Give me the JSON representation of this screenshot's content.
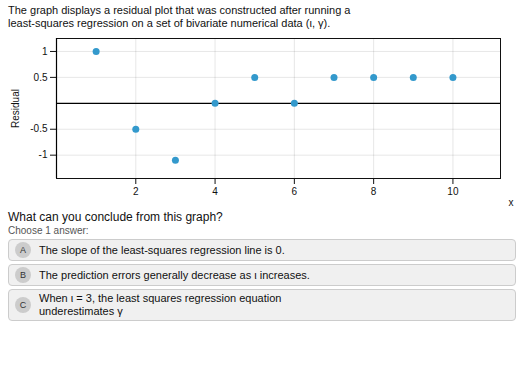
{
  "chart_data": {
    "type": "scatter",
    "title": "The graph displays a residual plot that was constructed after running a",
    "subtitle": "least-squares regression on a set of bivariate numerical data (ι, γ).",
    "x_label": "x",
    "y_label": "Residual",
    "x": [
      1,
      2,
      3,
      4,
      5,
      6,
      7,
      8,
      9,
      10
    ],
    "values": [
      1.0,
      -0.5,
      -1.1,
      0.0,
      0.5,
      0.0,
      0.5,
      0.5,
      0.5,
      0.5
    ],
    "color": "#3399cc",
    "xlim": [
      0,
      11.2
    ],
    "ylim": [
      -1.45,
      1.25
    ],
    "xticks": [
      2,
      4,
      6,
      8,
      10
    ],
    "yticks": [
      -1,
      -0.5,
      0.5,
      1
    ],
    "grid": true,
    "annotations": [
      {
        "text": "What can you conclude from this graph?"
      },
      {
        "text": "Choose 1 answer:"
      },
      {
        "label": "A",
        "text": [
          "The slope of the least-squares regression line is 0."
        ]
      },
      {
        "label": "B",
        "text": [
          "The prediction errors generally decrease as ι increases."
        ]
      },
      {
        "label": "C",
        "text": [
          "When ι = 3, the least squares regression equation",
          "underestimates γ"
        ]
      }
    ]
  }
}
